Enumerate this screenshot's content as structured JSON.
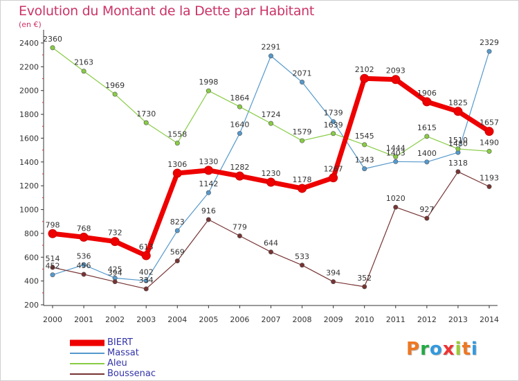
{
  "title": "Evolution du Montant de la Dette par Habitant",
  "subtitle": "(en €)",
  "brand": "Proxiti",
  "chart_data": {
    "type": "line",
    "title": "Evolution du Montant de la Dette par Habitant",
    "subtitle": "(en €)",
    "x": [
      "2000",
      "2001",
      "2002",
      "2003",
      "2004",
      "2005",
      "2006",
      "2007",
      "2008",
      "2009",
      "2010",
      "2011",
      "2012",
      "2013",
      "2014"
    ],
    "y_ticks": [
      "200",
      "400",
      "600",
      "800",
      "1000",
      "1200",
      "1400",
      "1600",
      "1800",
      "2000",
      "2200",
      "2400"
    ],
    "ylim": [
      200,
      2500
    ],
    "grid": false,
    "legend_position": "bottom-left",
    "series": [
      {
        "name": "BIERT",
        "color": "#ee0000",
        "width": 7,
        "values": [
          798,
          768,
          732,
          613,
          1306,
          1330,
          1282,
          1230,
          1178,
          1267,
          2102,
          2093,
          1906,
          1825,
          1657
        ]
      },
      {
        "name": "Massat",
        "color": "#5599cc",
        "width": 1.2,
        "values": [
          452,
          536,
          425,
          402,
          823,
          1142,
          1640,
          2291,
          2071,
          1739,
          1343,
          1403,
          1400,
          1480,
          2329
        ]
      },
      {
        "name": "Aleu",
        "color": "#88cc44",
        "width": 1.2,
        "values": [
          2360,
          2163,
          1969,
          1730,
          1558,
          1998,
          1864,
          1724,
          1579,
          1639,
          1545,
          1444,
          1615,
          1510,
          1490
        ]
      },
      {
        "name": "Boussenac",
        "color": "#773333",
        "width": 1.2,
        "values": [
          514,
          456,
          394,
          334,
          569,
          916,
          779,
          644,
          533,
          394,
          352,
          1020,
          927,
          1318,
          1193
        ]
      }
    ]
  },
  "colors": {
    "title": "#cc3366",
    "axis": "#333333",
    "label": "#333333"
  },
  "brand_colors": [
    "#ee7722",
    "#22aa44",
    "#3399dd",
    "#ee3333",
    "#99cc33",
    "#ee7722",
    "#3399dd"
  ]
}
